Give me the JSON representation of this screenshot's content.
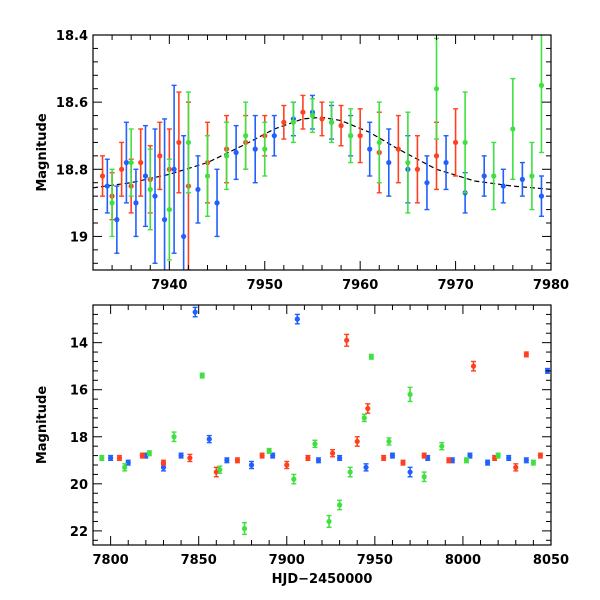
{
  "chart_data": [
    {
      "type": "scatter",
      "title": "",
      "xlabel": "",
      "ylabel": "Magnitude",
      "xlim": [
        7932,
        7980
      ],
      "ylim": [
        19.1,
        18.4
      ],
      "y_inverted": true,
      "grid": false,
      "legend": "none",
      "x_ticks": [
        7940,
        7950,
        7960,
        7970,
        7980
      ],
      "y_ticks": [
        18.4,
        18.6,
        18.8,
        19
      ],
      "y_tick_labels": [
        "18.4",
        "18.6",
        "18.8",
        "19"
      ],
      "model_curve": {
        "name": "",
        "color": "#000000",
        "x": [
          7932,
          7936,
          7940,
          7944,
          7948,
          7951,
          7954,
          7956,
          7958,
          7961,
          7964,
          7968,
          7972,
          7976,
          7980
        ],
        "y": [
          18.855,
          18.84,
          18.815,
          18.78,
          18.725,
          18.68,
          18.65,
          18.645,
          18.655,
          18.69,
          18.74,
          18.8,
          18.835,
          18.85,
          18.86
        ]
      },
      "series": [
        {
          "name": "",
          "color": "#2060ff",
          "x": [
            7933.5,
            7934.5,
            7935.5,
            7936.5,
            7937.5,
            7938.5,
            7939.5,
            7940.5,
            7941.5,
            7943,
            7945,
            7947,
            7949,
            7951,
            7953,
            7955,
            7957,
            7959,
            7961,
            7963,
            7965,
            7967,
            7969,
            7971,
            7973,
            7975,
            7977,
            7979
          ],
          "y": [
            18.85,
            18.95,
            18.78,
            18.9,
            18.82,
            18.88,
            18.95,
            18.8,
            19.0,
            18.86,
            18.9,
            18.75,
            18.74,
            18.7,
            18.65,
            18.63,
            18.66,
            18.7,
            18.74,
            18.78,
            18.8,
            18.84,
            18.78,
            18.87,
            18.82,
            18.85,
            18.83,
            18.88
          ],
          "err": [
            0.08,
            0.1,
            0.12,
            0.1,
            0.15,
            0.2,
            0.3,
            0.25,
            0.3,
            0.1,
            0.1,
            0.08,
            0.1,
            0.06,
            0.05,
            0.05,
            0.05,
            0.06,
            0.08,
            0.1,
            0.1,
            0.08,
            0.08,
            0.06,
            0.06,
            0.05,
            0.05,
            0.06
          ]
        },
        {
          "name": "",
          "color": "#ff4020",
          "x": [
            7933,
            7934,
            7935,
            7936,
            7937,
            7938,
            7939,
            7940,
            7941,
            7942,
            7944,
            7946,
            7948,
            7950,
            7952,
            7954,
            7956,
            7958,
            7960,
            7962,
            7964,
            7966,
            7968,
            7970
          ],
          "y": [
            18.82,
            18.88,
            18.8,
            18.85,
            18.78,
            18.83,
            18.76,
            18.8,
            18.72,
            18.85,
            18.78,
            18.74,
            18.72,
            18.7,
            18.66,
            18.63,
            18.65,
            18.67,
            18.7,
            18.75,
            18.74,
            18.8,
            18.76,
            18.72
          ],
          "err": [
            0.06,
            0.07,
            0.08,
            0.08,
            0.1,
            0.1,
            0.1,
            0.12,
            0.15,
            0.25,
            0.12,
            0.1,
            0.08,
            0.06,
            0.05,
            0.05,
            0.05,
            0.06,
            0.08,
            0.12,
            0.1,
            0.1,
            0.1,
            0.1
          ]
        },
        {
          "name": "",
          "color": "#40e040",
          "x": [
            7934,
            7936,
            7938,
            7940,
            7942,
            7944,
            7946,
            7948,
            7950,
            7953,
            7955,
            7957,
            7959,
            7962,
            7965,
            7968,
            7971,
            7974,
            7976,
            7978,
            7979
          ],
          "y": [
            18.9,
            18.78,
            18.86,
            18.92,
            18.72,
            18.82,
            18.76,
            18.7,
            18.74,
            18.66,
            18.64,
            18.66,
            18.7,
            18.72,
            18.78,
            18.56,
            18.72,
            18.82,
            18.68,
            18.82,
            18.55
          ],
          "err": [
            0.1,
            0.1,
            0.12,
            0.15,
            0.15,
            0.12,
            0.1,
            0.1,
            0.08,
            0.06,
            0.05,
            0.06,
            0.08,
            0.12,
            0.15,
            0.15,
            0.15,
            0.1,
            0.15,
            0.1,
            0.2
          ]
        }
      ]
    },
    {
      "type": "scatter",
      "title": "",
      "xlabel": "HJD−2450000",
      "ylabel": "Magnitude",
      "xlim": [
        7790,
        8050
      ],
      "ylim": [
        22.6,
        12.4
      ],
      "y_inverted": true,
      "grid": false,
      "legend": "none",
      "x_ticks": [
        7800,
        7850,
        7900,
        7950,
        8000,
        8050
      ],
      "y_ticks": [
        14,
        16,
        18,
        20,
        22
      ],
      "series": [
        {
          "name": "",
          "color": "#2060ff",
          "x": [
            7800,
            7810,
            7820,
            7830,
            7840,
            7848,
            7856,
            7866,
            7880,
            7892,
            7906,
            7918,
            7930,
            7945,
            7960,
            7970,
            7980,
            7994,
            8004,
            8014,
            8026,
            8036,
            8048
          ],
          "y": [
            18.9,
            19.1,
            18.8,
            19.3,
            18.8,
            12.7,
            18.1,
            19.0,
            19.2,
            18.8,
            13.0,
            19.0,
            18.9,
            19.3,
            18.8,
            19.5,
            18.9,
            19.0,
            18.8,
            19.1,
            18.9,
            19.0,
            15.2
          ],
          "err": [
            0.1,
            0.1,
            0.1,
            0.15,
            0.1,
            0.2,
            0.15,
            0.1,
            0.15,
            0.1,
            0.2,
            0.1,
            0.1,
            0.15,
            0.1,
            0.2,
            0.1,
            0.1,
            0.1,
            0.1,
            0.1,
            0.1,
            0.1
          ]
        },
        {
          "name": "",
          "color": "#ff4020",
          "x": [
            7805,
            7818,
            7830,
            7845,
            7860,
            7872,
            7886,
            7900,
            7912,
            7926,
            7934,
            7940,
            7946,
            7955,
            7966,
            7978,
            7992,
            8006,
            8018,
            8030,
            8036,
            8044
          ],
          "y": [
            18.9,
            18.8,
            19.1,
            18.9,
            19.5,
            19.0,
            18.8,
            19.2,
            18.9,
            18.7,
            13.9,
            18.2,
            16.8,
            18.9,
            19.1,
            18.8,
            19.0,
            15.0,
            18.9,
            19.3,
            14.5,
            18.8
          ],
          "err": [
            0.1,
            0.1,
            0.1,
            0.15,
            0.2,
            0.1,
            0.1,
            0.15,
            0.1,
            0.15,
            0.25,
            0.2,
            0.2,
            0.1,
            0.1,
            0.1,
            0.1,
            0.2,
            0.1,
            0.15,
            0.1,
            0.1
          ]
        },
        {
          "name": "",
          "color": "#40e040",
          "x": [
            7795,
            7808,
            7822,
            7836,
            7852,
            7862,
            7876,
            7890,
            7904,
            7916,
            7924,
            7930,
            7936,
            7944,
            7948,
            7958,
            7970,
            7978,
            7988,
            8002,
            8020,
            8040
          ],
          "y": [
            18.9,
            19.3,
            18.7,
            18.0,
            15.4,
            19.4,
            21.9,
            18.6,
            19.8,
            18.3,
            21.6,
            20.9,
            19.5,
            17.2,
            14.6,
            18.2,
            16.2,
            19.7,
            18.4,
            19.0,
            18.8,
            19.1
          ],
          "err": [
            0.1,
            0.15,
            0.1,
            0.2,
            0.1,
            0.15,
            0.25,
            0.1,
            0.2,
            0.15,
            0.25,
            0.2,
            0.2,
            0.15,
            0.1,
            0.15,
            0.3,
            0.2,
            0.15,
            0.1,
            0.1,
            0.1
          ]
        }
      ]
    }
  ]
}
